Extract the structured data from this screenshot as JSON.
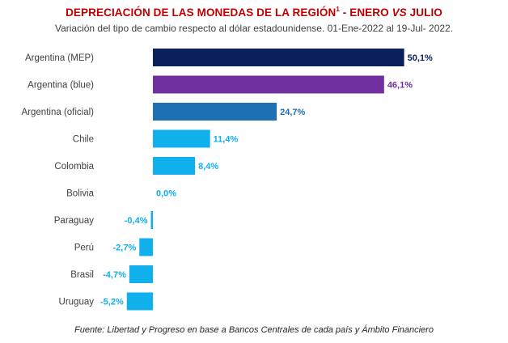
{
  "title": {
    "main": "DEPRECIACIÓN DE LAS MONEDAS DE LA REGIÓN",
    "superscript": "1",
    "middle": " - ENERO ",
    "vs": "VS",
    "end": " JULIO"
  },
  "subtitle": "Variación del tipo de cambio respecto al dólar estadounidense. 01-Ene-2022 al 19-Jul- 2022.",
  "source": "Fuente: Libertad y Progreso en base a Bancos Centrales de cada país y Ámbito Financiero",
  "chart_data": {
    "type": "bar",
    "orientation": "horizontal",
    "categories": [
      "Argentina (MEP)",
      "Argentina (blue)",
      "Argentina (oficial)",
      "Chile",
      "Colombia",
      "Bolivia",
      "Paraguay",
      "Perú",
      "Brasil",
      "Uruguay"
    ],
    "values": [
      50.1,
      46.1,
      24.7,
      11.4,
      8.4,
      0.0,
      -0.4,
      -2.7,
      -4.7,
      -5.2
    ],
    "value_labels": [
      "50,1%",
      "46,1%",
      "24,7%",
      "11,4%",
      "8,4%",
      "0,0%",
      "-0,4%",
      "-2,7%",
      "-4,7%",
      "-5,2%"
    ],
    "colors": [
      "#0b1f5c",
      "#7030a0",
      "#1f6fb5",
      "#0fb0ec",
      "#0fb0ec",
      "#0fb0ec",
      "#0fb0ec",
      "#0fb0ec",
      "#0fb0ec",
      "#0fb0ec"
    ],
    "label_colors": [
      "#0b1f5c",
      "#7030a0",
      "#1f6fb5",
      "#0fb0ec",
      "#0fb0ec",
      "#0fb0ec",
      "#0fb0ec",
      "#0fb0ec",
      "#0fb0ec",
      "#0fb0ec"
    ],
    "xlim": [
      -5.2,
      50.1
    ],
    "grid": false,
    "legend": "none"
  }
}
